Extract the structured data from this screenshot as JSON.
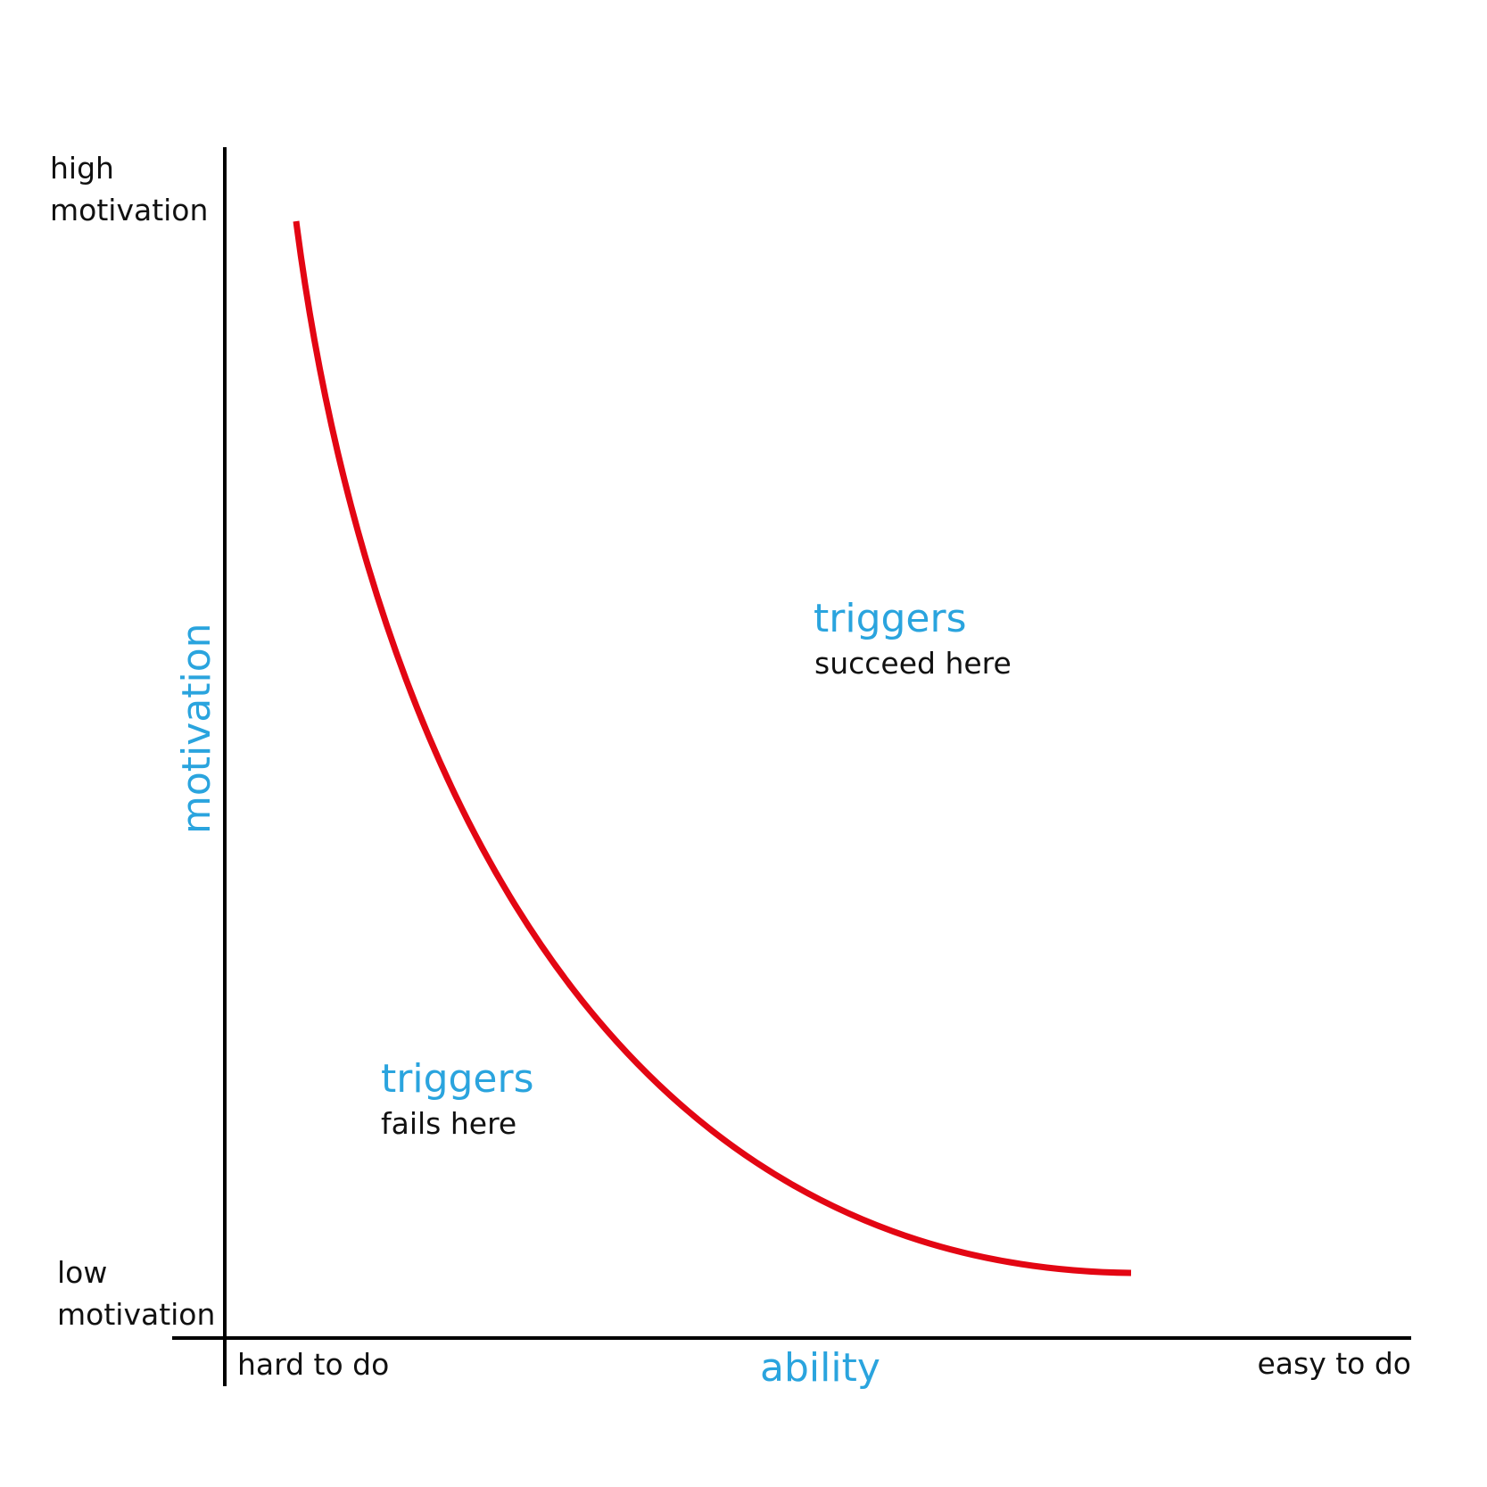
{
  "axes": {
    "y_label": "motivation",
    "x_label": "ability",
    "y_top": [
      "high",
      "motivation"
    ],
    "y_bottom": [
      "low",
      "motivation"
    ],
    "x_left": "hard to do",
    "x_right": "easy to do"
  },
  "regions": {
    "above": {
      "title": "triggers",
      "subtitle": "succeed here"
    },
    "below": {
      "title": "triggers",
      "subtitle": "fails here"
    }
  },
  "colors": {
    "curve": "#e30613",
    "accent_text": "#2aa4de",
    "axis": "#000000",
    "text": "#111111"
  }
}
